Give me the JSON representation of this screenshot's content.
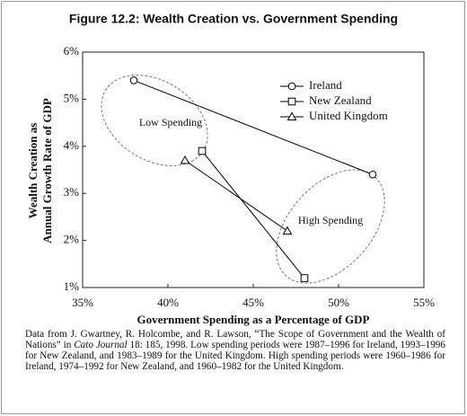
{
  "chart_data": {
    "type": "line",
    "title": "Figure 12.2: Wealth Creation vs. Government Spending",
    "xlabel": "Government Spending as a Percentage of GDP",
    "ylabel": [
      "Wealth Creation as",
      "Annual Growth Rate of GDP"
    ],
    "xlim": [
      35,
      55
    ],
    "xticks": [
      {
        "value": 35,
        "label": "35%"
      },
      {
        "value": 40,
        "label": "40%"
      },
      {
        "value": 45,
        "label": "45%"
      },
      {
        "value": 50,
        "label": "50%"
      },
      {
        "value": 55,
        "label": "55%"
      }
    ],
    "ylim": [
      1,
      6
    ],
    "yticks": [
      {
        "value": 1,
        "label": "1%"
      },
      {
        "value": 2,
        "label": "2%"
      },
      {
        "value": 3,
        "label": "3%"
      },
      {
        "value": 4,
        "label": "4%"
      },
      {
        "value": 5,
        "label": "5%"
      },
      {
        "value": 6,
        "label": "6%"
      }
    ],
    "series": [
      {
        "name": "Ireland",
        "color": "#000000",
        "marker": "circle",
        "x": [
          38,
          52
        ],
        "values": [
          5.4,
          3.4
        ]
      },
      {
        "name": "New Zealand",
        "color": "#000000",
        "marker": "square",
        "x": [
          42,
          48
        ],
        "values": [
          3.9,
          1.2
        ]
      },
      {
        "name": "United Kingdom",
        "color": "#000000",
        "marker": "triangle",
        "x": [
          41,
          47
        ],
        "values": [
          3.7,
          2.2
        ]
      }
    ],
    "annotations": [
      "Low Spending",
      "High Spending"
    ],
    "caption": {
      "before": "Data from J. Gwartney, R. Holcombe, and R. Lawson, “The Scope of Government and the Wealth of Nations” in ",
      "journal": "Cato Journal",
      "after": " 18: 185, 1998. Low spending periods were 1987–1996 for Ireland, 1993–1996 for New Zealand, and 1983–1989 for the United Kingdom. High spending periods were 1960–1986 for Ireland, 1974–1992 for New Zealand, and 1960–1982 for the United Kingdom."
    }
  }
}
